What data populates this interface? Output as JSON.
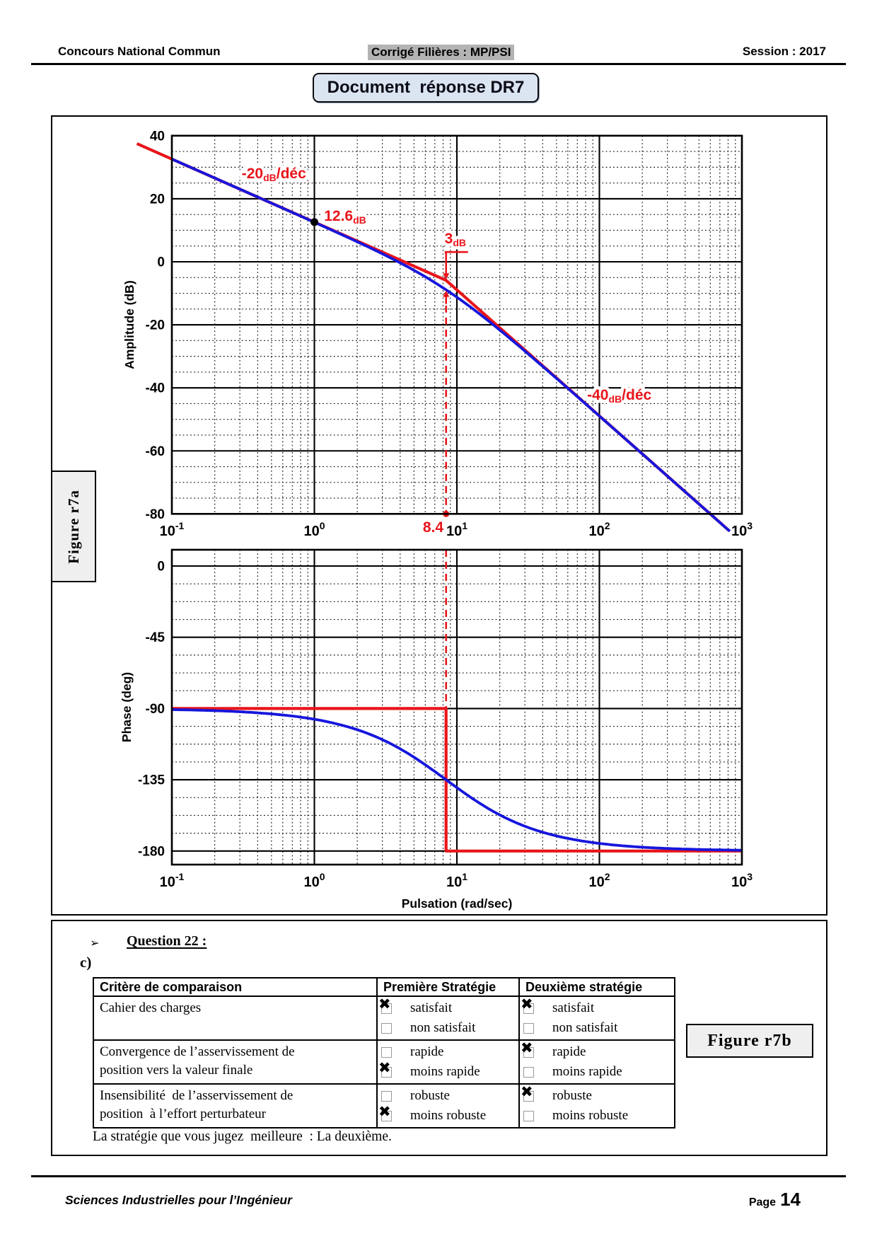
{
  "header": {
    "left": "Concours National Commun",
    "center": "Corrigé Filières : MP/PSI",
    "right": "Session : 2017"
  },
  "title_box": "Document  réponse DR7",
  "figure_a_label": "Figure r7a",
  "figure_b_label": "Figure r7b",
  "icons": {
    "checkbox_checked": "✖",
    "bullet_arrow": "➢"
  },
  "colors": {
    "curve_red": "#e8151b",
    "curve_blue": "#1616dd",
    "title_fill": "#dbe5f1",
    "highlight_gray": "#b3b3b3",
    "fig_tag_fill": "#efefef"
  },
  "question": {
    "title": "Question 22 :",
    "sub": "c)",
    "conclusion": "La stratégie que vous jugez  meilleure  : La deuxième."
  },
  "table": {
    "headers": [
      "Critère de comparaison",
      "Première Stratégie",
      "Deuxième stratégie"
    ],
    "rows": [
      {
        "criterion": "Cahier des charges",
        "strategy1": [
          {
            "label": "satisfait",
            "checked": true
          },
          {
            "label": "non satisfait",
            "checked": false
          }
        ],
        "strategy2": [
          {
            "label": "satisfait",
            "checked": true
          },
          {
            "label": "non satisfait",
            "checked": false
          }
        ]
      },
      {
        "criterion": "Convergence de l’asservissement de\nposition vers la valeur finale",
        "strategy1": [
          {
            "label": "rapide",
            "checked": false
          },
          {
            "label": "moins rapide",
            "checked": true
          }
        ],
        "strategy2": [
          {
            "label": "rapide",
            "checked": true
          },
          {
            "label": "moins rapide",
            "checked": false
          }
        ]
      },
      {
        "criterion": "Insensibilité  de l’asservissement de\nposition  à l’effort perturbateur",
        "strategy1": [
          {
            "label": "robuste",
            "checked": false
          },
          {
            "label": "moins robuste",
            "checked": true
          }
        ],
        "strategy2": [
          {
            "label": "robuste",
            "checked": true
          },
          {
            "label": "moins robuste",
            "checked": false
          }
        ]
      }
    ]
  },
  "footer": {
    "left": "Sciences Industrielles pour l’Ingénieur",
    "page_label": "Page",
    "page_number": "14"
  },
  "chart_data": [
    {
      "id": "amplitude",
      "type": "line",
      "title": "",
      "ylabel": "Amplitude (dB)",
      "x_scale": "log",
      "xlim": [
        0.1,
        1000
      ],
      "ylim": [
        -80,
        40
      ],
      "ytick_values": [
        40,
        20,
        0,
        -20,
        -40,
        -60,
        -80
      ],
      "y_minor_step": 5,
      "xtick_labels": [
        "10^-1",
        "10^0",
        "10^1",
        "10^2",
        "10^3"
      ],
      "grid": "on",
      "series": [
        {
          "name": "asymptotic-gain",
          "color": "#e8151b",
          "kind": "bode_asymptote",
          "gain_db_at_1rad": 12.6,
          "corner_rad_s": 8.4,
          "slope_before_db_per_dec": -20,
          "slope_after_db_per_dec": -40,
          "overshoot_dec_left": 0.245,
          "overshoot_db_bottom": 5.3
        },
        {
          "name": "exact-gain",
          "color": "#1616dd",
          "kind": "bode_exact_magnitude",
          "gain_db_at_1rad": 12.6,
          "corner_rad_s": 8.4
        }
      ],
      "annotations": [
        {
          "kind": "slope-label",
          "text": "-20{dB}/déc",
          "w": 0.52,
          "v": 26.5,
          "anchor": "middle"
        },
        {
          "kind": "point-label",
          "text": "12.6{dB}",
          "w": 1.17,
          "v": 13.0,
          "anchor": "start"
        },
        {
          "kind": "gap-label",
          "text": "3{dB}",
          "w": 8.2,
          "v": 5.8,
          "anchor": "start"
        },
        {
          "kind": "slope-label",
          "text": "-40{dB}/déc",
          "w": 82,
          "v": -43.8,
          "anchor": "start"
        },
        {
          "kind": "freq-label",
          "text": "8.4",
          "w": 8.06,
          "v": -85.8,
          "anchor": "end"
        }
      ],
      "markers": [
        {
          "kind": "dot",
          "w": 1.0,
          "v": 12.6,
          "color": "#000000",
          "r": 5.5
        },
        {
          "kind": "dot",
          "w": 8.4,
          "v": -80,
          "color": "#e8151b",
          "r": 4.5
        },
        {
          "kind": "dashed-vline",
          "w": 8.4,
          "v_from": -13.9,
          "v_to": -80
        },
        {
          "kind": "gap-arrows",
          "w": 8.4,
          "v_top": -5.89,
          "v_bottom": -8.89
        }
      ]
    },
    {
      "id": "phase",
      "type": "line",
      "title": "",
      "ylabel": "Phase (deg)",
      "xlabel": "Pulsation  (rad/sec)",
      "x_scale": "log",
      "xlim": [
        0.1,
        1000
      ],
      "ylim": [
        -188.6,
        10.3
      ],
      "ytick_values": [
        0,
        -45,
        -90,
        -135,
        -180
      ],
      "y_minor_step": 11.25,
      "xtick_labels": [
        "10^-1",
        "10^0",
        "10^1",
        "10^2",
        "10^3"
      ],
      "grid": "on",
      "series": [
        {
          "name": "asymptotic-phase",
          "color": "#e8151b",
          "kind": "step",
          "points": [
            [
              0.1,
              -90
            ],
            [
              8.4,
              -90
            ],
            [
              8.4,
              -180
            ],
            [
              1000,
              -180
            ]
          ]
        },
        {
          "name": "exact-phase",
          "color": "#1616dd",
          "kind": "bode_exact_phase",
          "base_deg": -90,
          "corner_rad_s": 8.4
        }
      ],
      "annotations": [],
      "markers": [
        {
          "kind": "dashed-vline",
          "w": 8.4,
          "v_from": 10.3,
          "v_to": -90
        }
      ]
    }
  ]
}
